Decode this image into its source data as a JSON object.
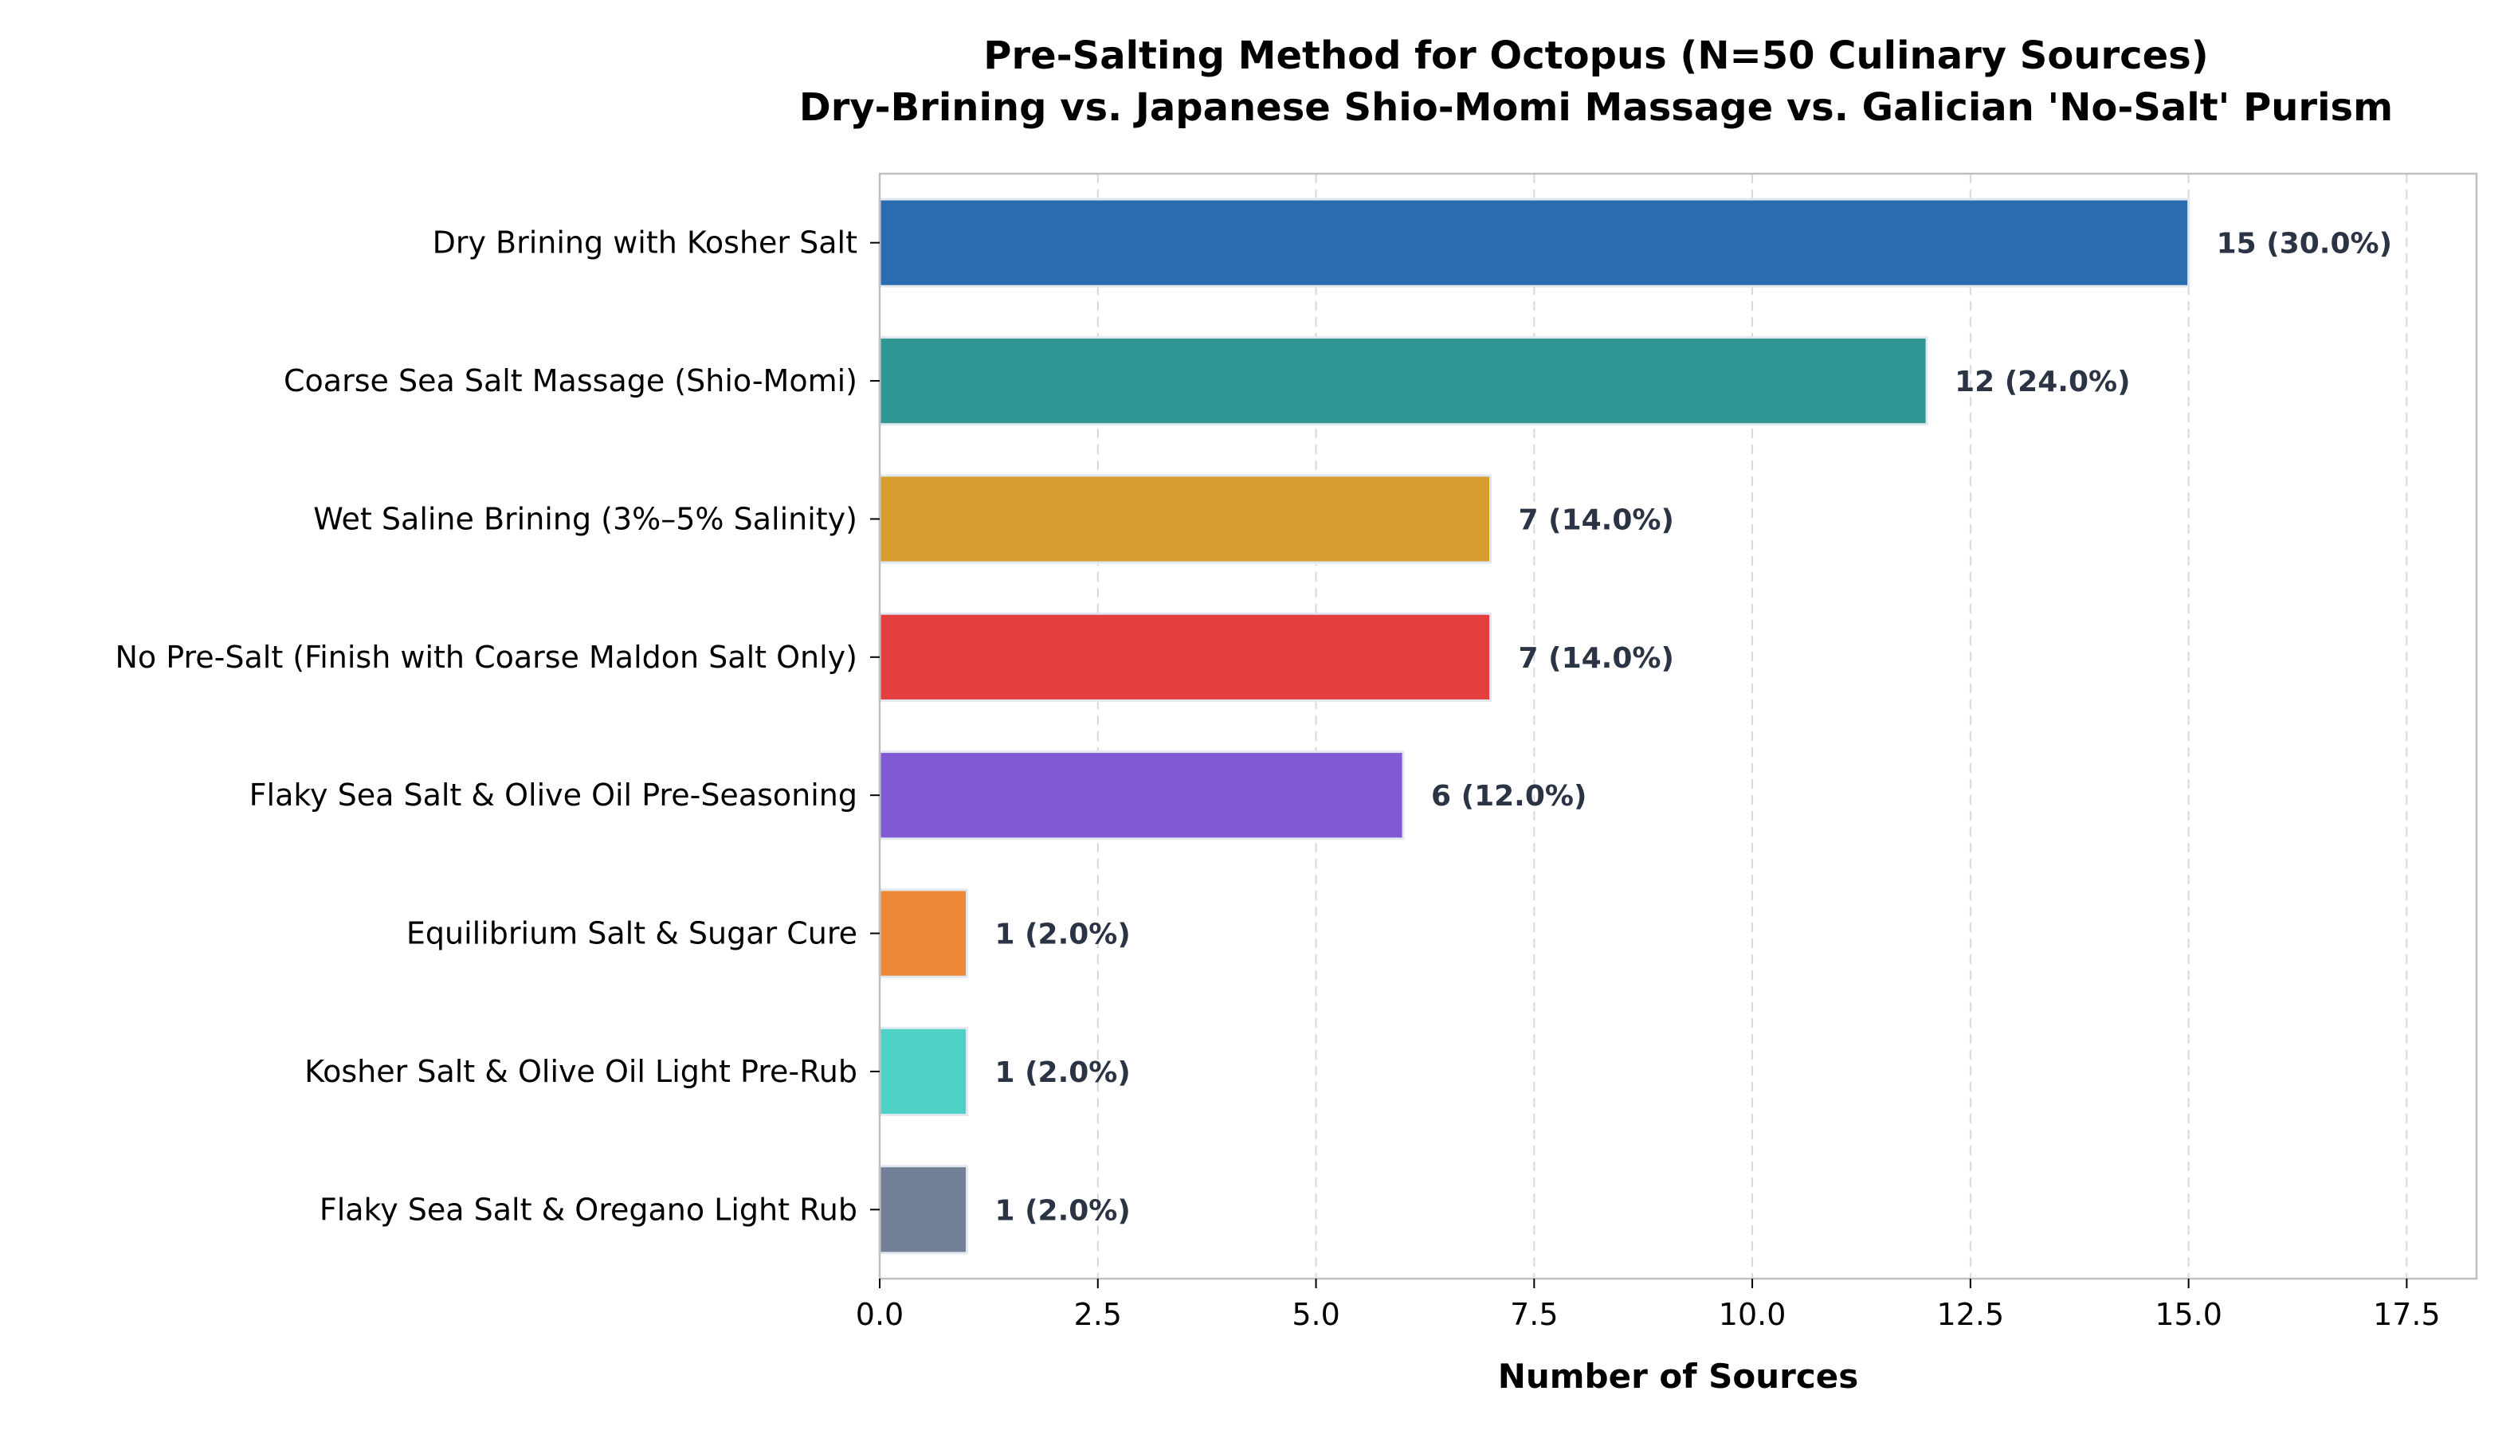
{
  "chart_data": {
    "type": "bar",
    "orientation": "horizontal",
    "title": "Pre-Salting Method for Octopus (N=50 Culinary Sources)",
    "subtitle": "Dry-Brining vs. Japanese Shio-Momi Massage vs. Galician 'No-Salt' Purism",
    "xlabel": "Number of Sources",
    "ylabel": "",
    "xlim": [
      0,
      18.3
    ],
    "xticks": [
      "0.0",
      "2.5",
      "5.0",
      "7.5",
      "10.0",
      "12.5",
      "15.0",
      "17.5"
    ],
    "grid": "vertical dashed",
    "categories": [
      "Dry Brining with Kosher Salt",
      "Coarse Sea Salt Massage (Shio-Momi)",
      "Wet Saline Brining (3%–5% Salinity)",
      "No Pre-Salt (Finish with Coarse Maldon Salt Only)",
      "Flaky Sea Salt & Olive Oil Pre-Seasoning",
      "Equilibrium Salt & Sugar Cure",
      "Kosher Salt & Olive Oil Light Pre-Rub",
      "Flaky Sea Salt & Oregano Light Rub"
    ],
    "values": [
      15,
      12,
      7,
      7,
      6,
      1,
      1,
      1
    ],
    "data_labels": [
      "15 (30.0%)",
      "12 (24.0%)",
      "7 (14.0%)",
      "7 (14.0%)",
      "6 (12.0%)",
      "1 (2.0%)",
      "1 (2.0%)",
      "1 (2.0%)"
    ],
    "colors": [
      "#2b6cb0",
      "#319795",
      "#d69e2e",
      "#e53e3e",
      "#805ad5",
      "#ed8936",
      "#4fd1c5",
      "#718096"
    ]
  }
}
